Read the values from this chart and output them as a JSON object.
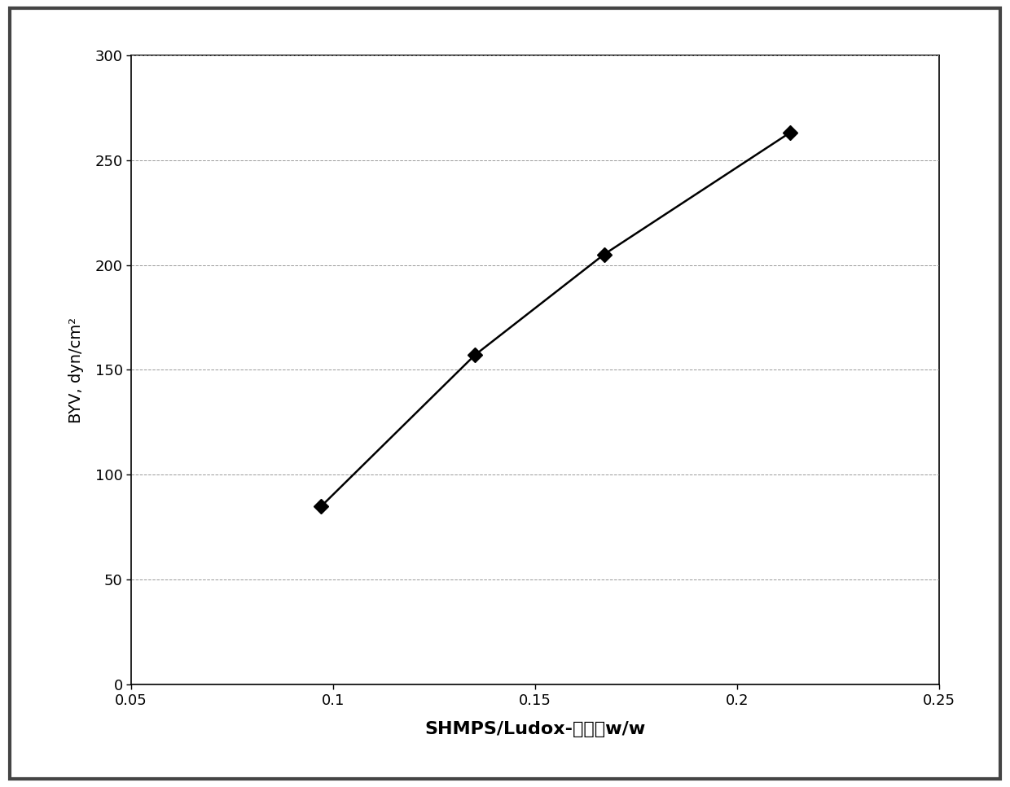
{
  "x": [
    0.097,
    0.135,
    0.167,
    0.213
  ],
  "y": [
    85,
    157,
    205,
    263
  ],
  "xlabel_ascii": "SHMPS/Ludox-",
  "xlabel_chinese": "比例，",
  "xlabel_end": "w/w",
  "ylabel": "BYV, dyn/cm²",
  "xlim": [
    0.05,
    0.25
  ],
  "ylim": [
    0,
    300
  ],
  "xticks": [
    0.05,
    0.1,
    0.15,
    0.2,
    0.25
  ],
  "yticks": [
    0,
    50,
    100,
    150,
    200,
    250,
    300
  ],
  "xtick_labels": [
    "0.05",
    "0.1",
    "0.15",
    "0.2",
    "0.25"
  ],
  "ytick_labels": [
    "0",
    "50",
    "100",
    "150",
    "200",
    "250",
    "300"
  ],
  "line_color": "#000000",
  "marker": "D",
  "marker_color": "#000000",
  "marker_size": 9,
  "line_width": 1.8,
  "grid_color": "#999999",
  "grid_linestyle": "--",
  "grid_linewidth": 0.7,
  "background_color": "#ffffff",
  "border_color": "#000000",
  "xlabel_fontsize": 16,
  "ylabel_fontsize": 14,
  "tick_fontsize": 13
}
